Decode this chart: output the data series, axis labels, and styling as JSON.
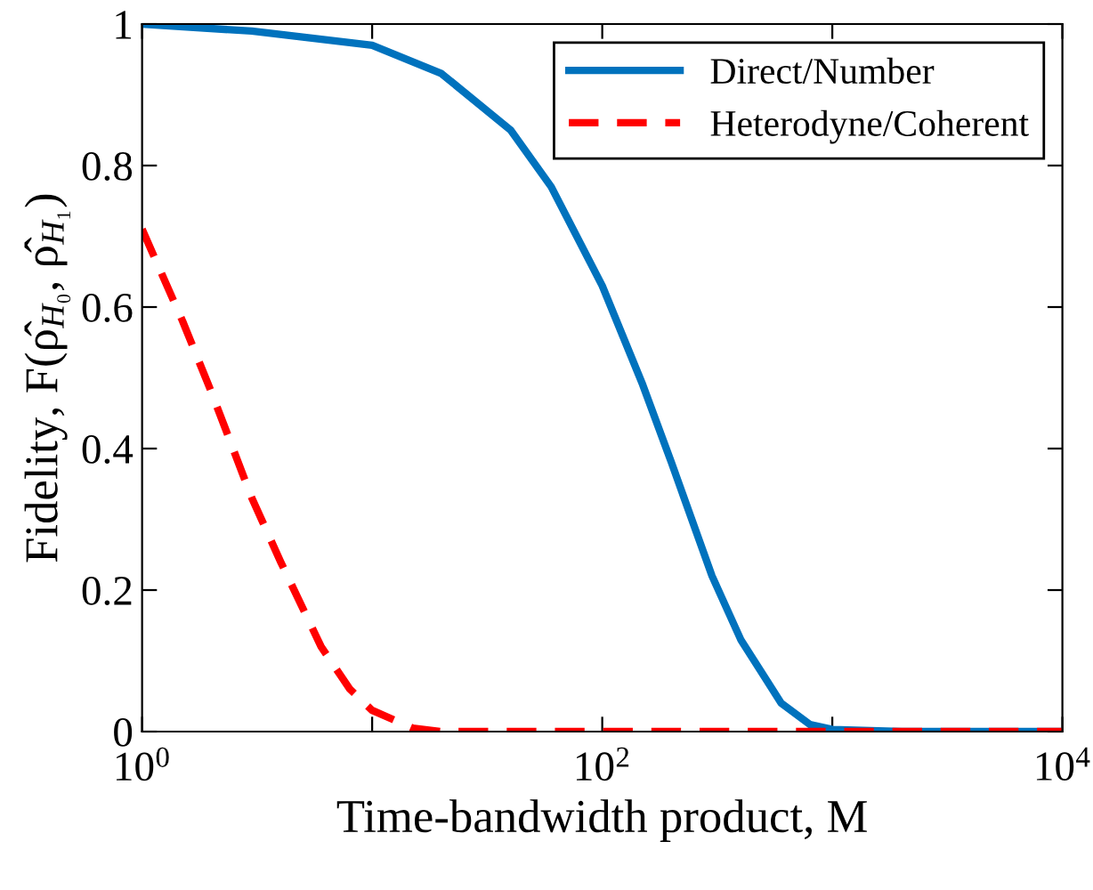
{
  "chart_data": {
    "type": "line",
    "xlabel": "Time-bandwidth product, M",
    "ylabel": "Fidelity, F(ρ̂$_{H₀}$, ρ̂$_{H₁}$)",
    "series": [
      {
        "name": "Direct/Number",
        "color": "#0072bd",
        "line_style": "solid",
        "x": [
          1,
          3,
          10,
          20,
          40,
          60,
          100,
          150,
          200,
          300,
          400,
          600,
          800,
          1000,
          2000,
          10000
        ],
        "values": [
          1.0,
          0.99,
          0.97,
          0.93,
          0.85,
          0.77,
          0.63,
          0.49,
          0.38,
          0.22,
          0.13,
          0.04,
          0.01,
          0.003,
          0,
          0
        ]
      },
      {
        "name": "Heterodyne/Coherent",
        "color": "#ff0000",
        "line_style": "dashed",
        "x": [
          1,
          1.5,
          2,
          3,
          4,
          6,
          8,
          10,
          15,
          20,
          10000
        ],
        "values": [
          0.71,
          0.58,
          0.48,
          0.33,
          0.24,
          0.12,
          0.06,
          0.03,
          0.005,
          0,
          0
        ]
      }
    ],
    "log": "x",
    "xlim": [
      1,
      10000
    ],
    "xticks": [
      {
        "value": 1,
        "label": "10$^{0}$"
      },
      {
        "value": 10,
        "label": null
      },
      {
        "value": 100,
        "label": "10$^{2}$"
      },
      {
        "value": 1000,
        "label": null
      },
      {
        "value": 10000,
        "label": "10$^{4}$"
      }
    ],
    "ylim": [
      0,
      1
    ],
    "yticks": [
      0,
      0.2,
      0.4,
      0.6,
      0.8,
      1
    ],
    "grid": false,
    "legend": "top right"
  }
}
